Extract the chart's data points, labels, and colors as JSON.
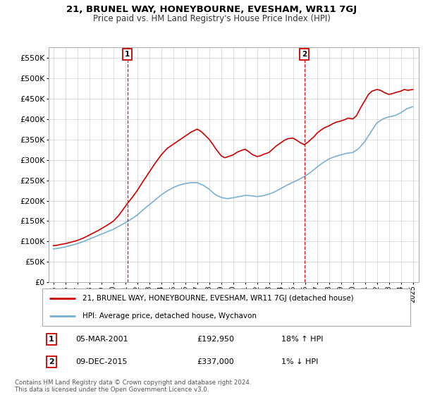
{
  "title": "21, BRUNEL WAY, HONEYBOURNE, EVESHAM, WR11 7GJ",
  "subtitle": "Price paid vs. HM Land Registry's House Price Index (HPI)",
  "ylabel_ticks": [
    0,
    50000,
    100000,
    150000,
    200000,
    250000,
    300000,
    350000,
    400000,
    450000,
    500000,
    550000
  ],
  "ylim": [
    0,
    575000
  ],
  "xlim_start": 1994.6,
  "xlim_end": 2025.5,
  "transactions": [
    {
      "num": 1,
      "date": "05-MAR-2001",
      "price": 192950,
      "hpi_pct": "18% ↑ HPI",
      "x_year": 2001.17
    },
    {
      "num": 2,
      "date": "09-DEC-2015",
      "price": 337000,
      "hpi_pct": "1% ↓ HPI",
      "x_year": 2015.94
    }
  ],
  "legend_property": "21, BRUNEL WAY, HONEYBOURNE, EVESHAM, WR11 7GJ (detached house)",
  "legend_hpi": "HPI: Average price, detached house, Wychavon",
  "property_color": "#cc0000",
  "hpi_color": "#7ab0d4",
  "vline_color": "#cc0000",
  "footer": "Contains HM Land Registry data © Crown copyright and database right 2024.\nThis data is licensed under the Open Government Licence v3.0.",
  "x_tick_years": [
    1995,
    1996,
    1997,
    1998,
    1999,
    2000,
    2001,
    2002,
    2003,
    2004,
    2005,
    2006,
    2007,
    2008,
    2009,
    2010,
    2011,
    2012,
    2013,
    2014,
    2015,
    2016,
    2017,
    2018,
    2019,
    2020,
    2021,
    2022,
    2023,
    2024,
    2025
  ],
  "hpi_x": [
    1995.0,
    1995.5,
    1996.0,
    1996.5,
    1997.0,
    1997.5,
    1998.0,
    1998.5,
    1999.0,
    1999.5,
    2000.0,
    2000.5,
    2001.0,
    2001.5,
    2002.0,
    2002.5,
    2003.0,
    2003.5,
    2004.0,
    2004.5,
    2005.0,
    2005.5,
    2006.0,
    2006.5,
    2007.0,
    2007.5,
    2008.0,
    2008.5,
    2009.0,
    2009.5,
    2010.0,
    2010.5,
    2011.0,
    2011.5,
    2012.0,
    2012.5,
    2013.0,
    2013.5,
    2014.0,
    2014.5,
    2015.0,
    2015.5,
    2016.0,
    2016.5,
    2017.0,
    2017.5,
    2018.0,
    2018.5,
    2019.0,
    2019.5,
    2020.0,
    2020.5,
    2021.0,
    2021.5,
    2022.0,
    2022.5,
    2023.0,
    2023.5,
    2024.0,
    2024.5,
    2025.0
  ],
  "hpi_y": [
    82000,
    84000,
    87000,
    91000,
    95000,
    100000,
    106000,
    112000,
    118000,
    124000,
    130000,
    138000,
    146000,
    155000,
    165000,
    178000,
    190000,
    202000,
    214000,
    224000,
    232000,
    238000,
    242000,
    244000,
    244000,
    238000,
    228000,
    215000,
    208000,
    205000,
    207000,
    210000,
    213000,
    212000,
    210000,
    212000,
    216000,
    222000,
    230000,
    238000,
    245000,
    252000,
    260000,
    270000,
    282000,
    293000,
    302000,
    308000,
    312000,
    316000,
    318000,
    328000,
    345000,
    368000,
    390000,
    400000,
    405000,
    408000,
    415000,
    425000,
    430000
  ],
  "property_x": [
    1995.0,
    1995.3,
    1995.6,
    1996.0,
    1996.4,
    1996.8,
    1997.2,
    1997.6,
    1998.0,
    1998.4,
    1998.8,
    1999.2,
    1999.6,
    2000.0,
    2000.4,
    2000.8,
    2001.17,
    2001.5,
    2002.0,
    2002.5,
    2003.0,
    2003.5,
    2004.0,
    2004.5,
    2005.0,
    2005.5,
    2006.0,
    2006.5,
    2007.0,
    2007.3,
    2007.6,
    2008.0,
    2008.3,
    2008.6,
    2009.0,
    2009.3,
    2009.6,
    2010.0,
    2010.3,
    2010.6,
    2011.0,
    2011.3,
    2011.6,
    2012.0,
    2012.3,
    2012.6,
    2013.0,
    2013.3,
    2013.6,
    2014.0,
    2014.3,
    2014.6,
    2015.0,
    2015.3,
    2015.6,
    2015.94,
    2016.2,
    2016.5,
    2016.8,
    2017.0,
    2017.3,
    2017.6,
    2018.0,
    2018.3,
    2018.6,
    2019.0,
    2019.3,
    2019.6,
    2020.0,
    2020.3,
    2020.6,
    2021.0,
    2021.3,
    2021.6,
    2022.0,
    2022.3,
    2022.6,
    2023.0,
    2023.3,
    2023.6,
    2024.0,
    2024.3,
    2024.6,
    2025.0
  ],
  "property_y": [
    90000,
    91000,
    93000,
    95000,
    98000,
    101000,
    105000,
    110000,
    116000,
    122000,
    128000,
    135000,
    142000,
    150000,
    162000,
    178000,
    192950,
    205000,
    225000,
    248000,
    270000,
    292000,
    312000,
    328000,
    338000,
    348000,
    358000,
    368000,
    375000,
    370000,
    362000,
    350000,
    338000,
    325000,
    310000,
    305000,
    308000,
    312000,
    318000,
    322000,
    326000,
    320000,
    313000,
    308000,
    310000,
    314000,
    318000,
    326000,
    334000,
    342000,
    348000,
    352000,
    353000,
    348000,
    342000,
    337000,
    342000,
    350000,
    358000,
    365000,
    372000,
    378000,
    383000,
    388000,
    392000,
    395000,
    398000,
    402000,
    400000,
    408000,
    425000,
    445000,
    460000,
    468000,
    472000,
    470000,
    465000,
    460000,
    462000,
    465000,
    468000,
    472000,
    470000,
    472000
  ],
  "title_fontsize": 9.5,
  "subtitle_fontsize": 8.5
}
